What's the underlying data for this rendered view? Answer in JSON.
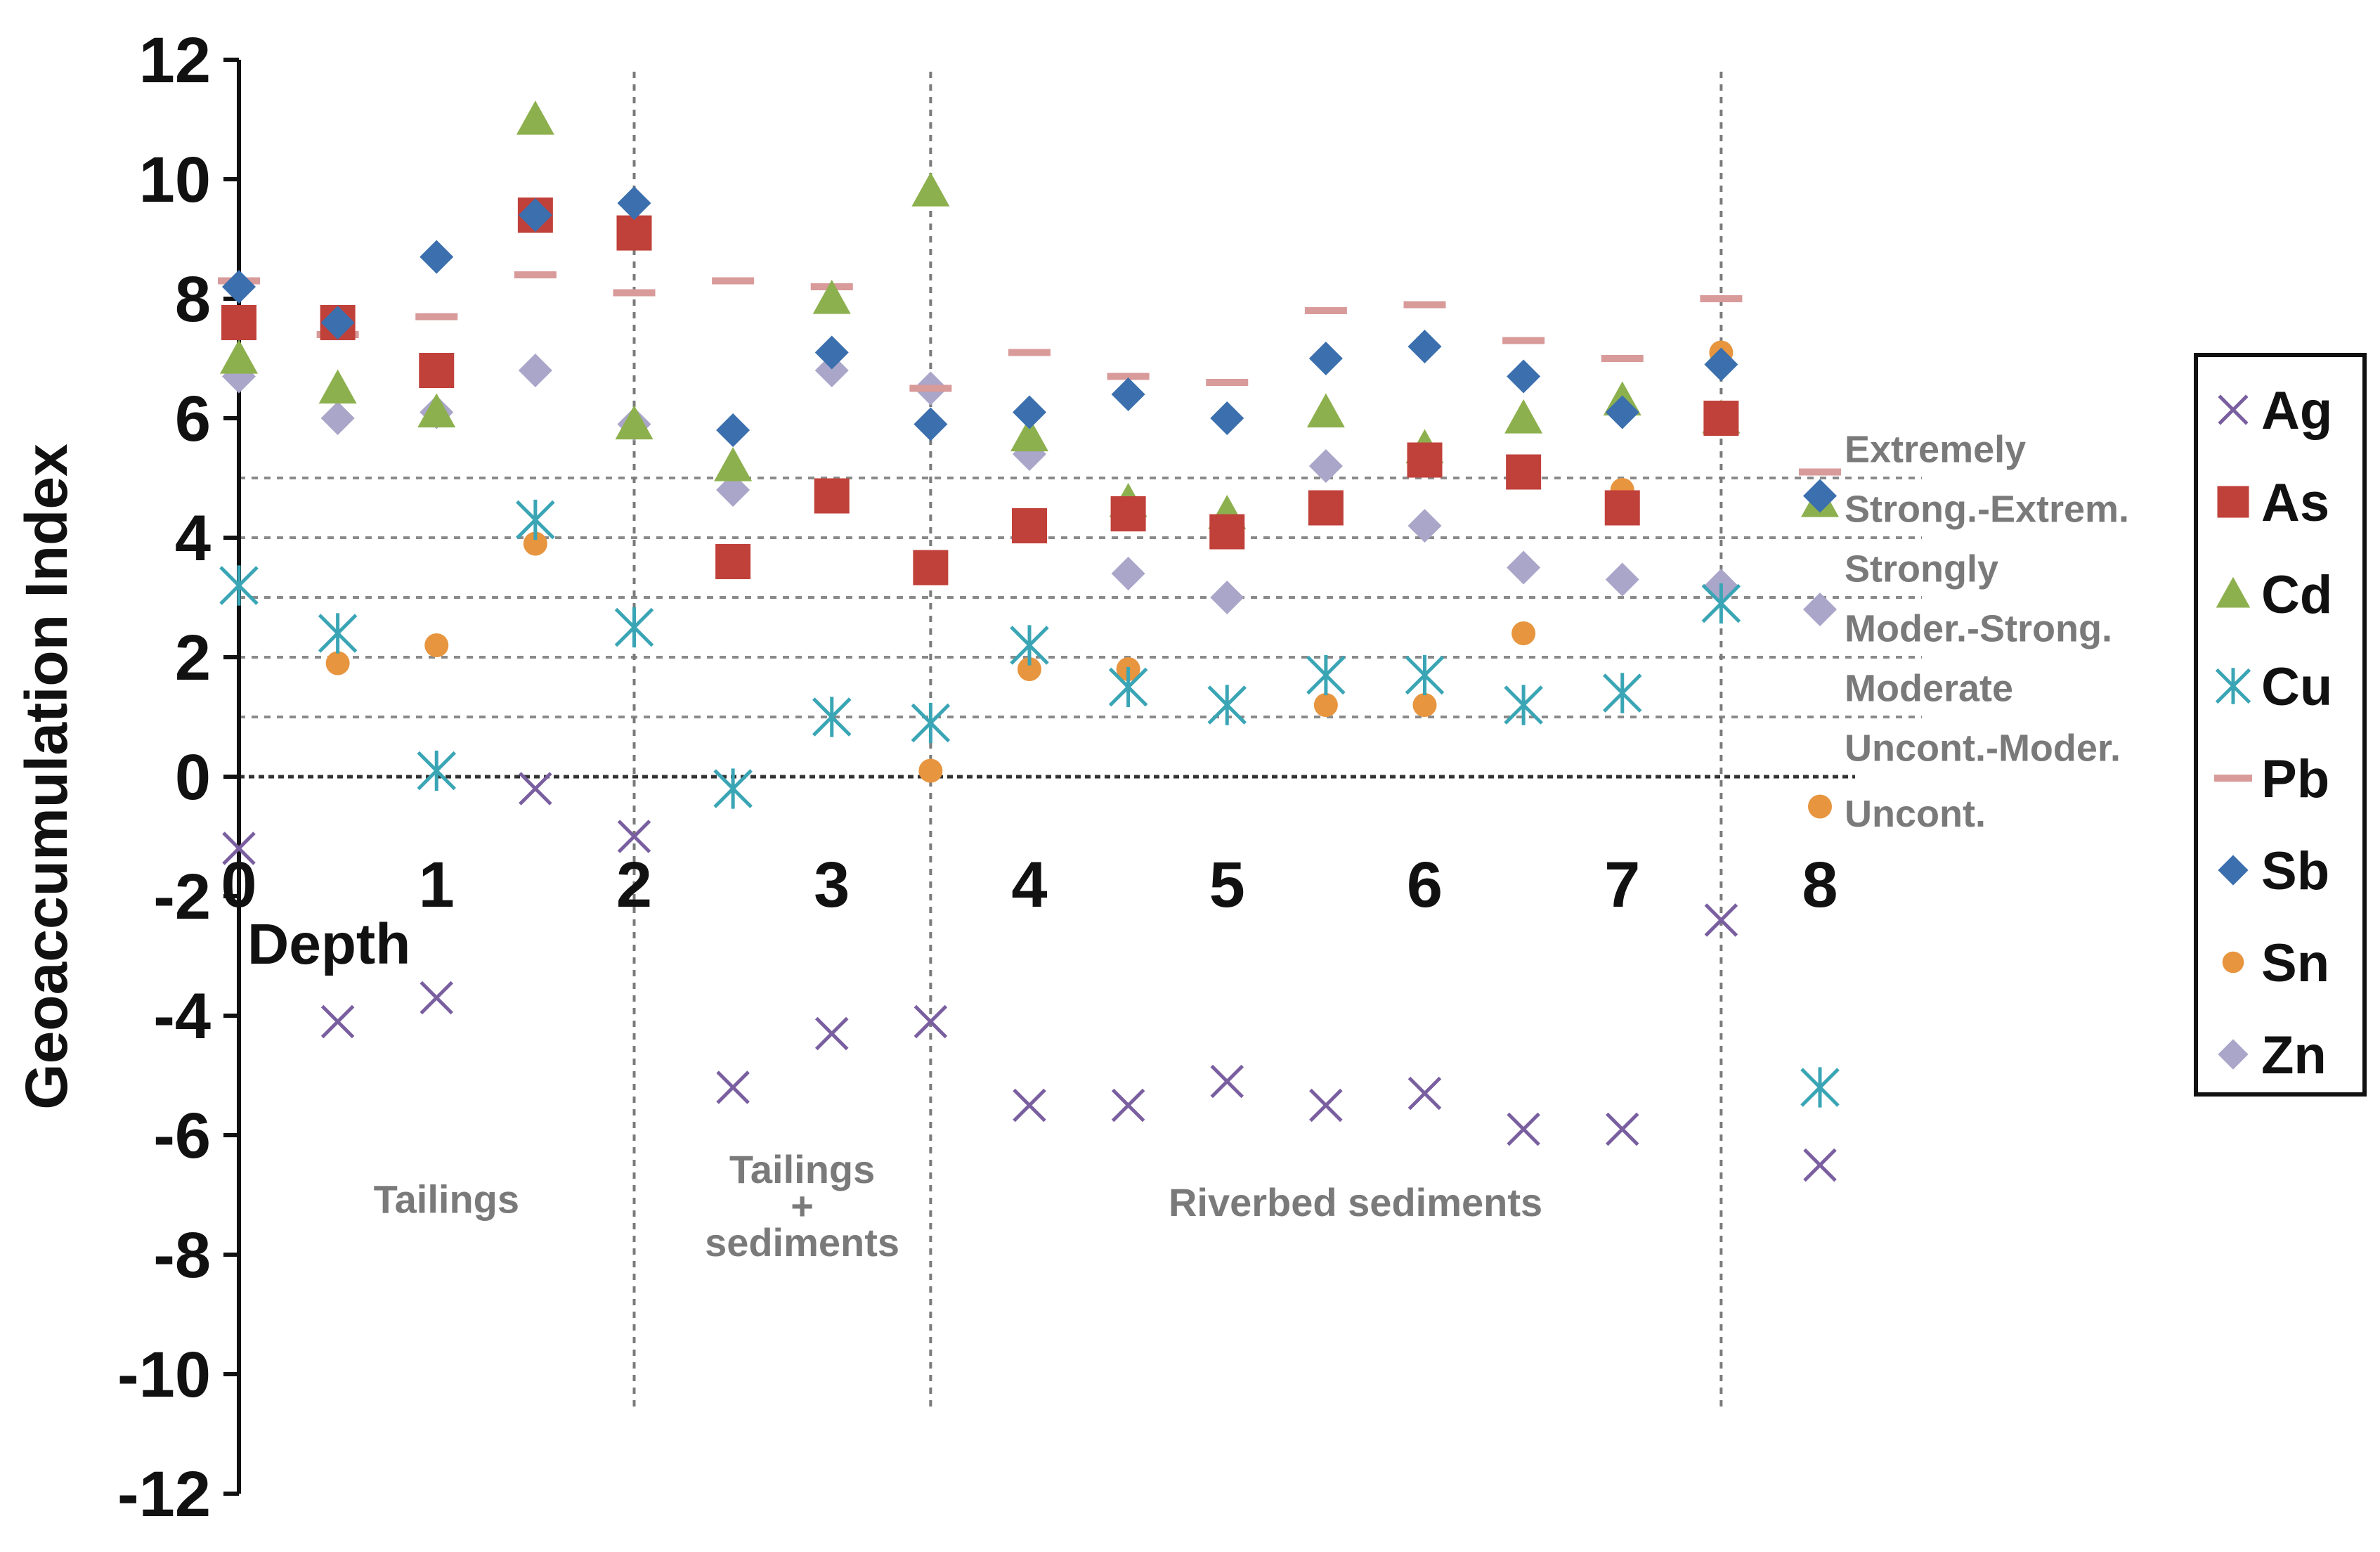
{
  "chart_data": {
    "type": "scatter",
    "title": "",
    "xlabel": "Depth",
    "ylabel": "Geoaccumulation Index",
    "xlim": [
      0,
      8
    ],
    "ylim": [
      -12,
      12
    ],
    "x_ticks": [
      "0",
      "1",
      "2",
      "3",
      "4",
      "5",
      "6",
      "7",
      "8"
    ],
    "y_ticks": [
      "12",
      "10",
      "8",
      "6",
      "4",
      "2",
      "0",
      "-2",
      "-4",
      "-6",
      "-8",
      "-10",
      "-12"
    ],
    "x": [
      0,
      0.5,
      1,
      1.5,
      2,
      2.5,
      3,
      3.5,
      4,
      4.5,
      5,
      5.5,
      6,
      6.5,
      7,
      7.5,
      8
    ],
    "series": [
      {
        "name": "Ag",
        "marker": "x",
        "color": "#7a5fa0",
        "values": [
          -1.2,
          -4.1,
          -3.7,
          -0.2,
          -1.0,
          -5.2,
          -4.3,
          -4.1,
          -5.5,
          -5.5,
          -5.1,
          -5.5,
          -5.3,
          -5.9,
          -5.9,
          -2.4,
          -6.5
        ]
      },
      {
        "name": "As",
        "marker": "square",
        "color": "#c0403a",
        "values": [
          7.6,
          7.6,
          6.8,
          9.4,
          9.1,
          3.6,
          4.7,
          3.5,
          4.2,
          4.4,
          4.1,
          4.5,
          5.3,
          5.1,
          4.5,
          6.0,
          null
        ]
      },
      {
        "name": "Cd",
        "marker": "triangle",
        "color": "#8db04e",
        "values": [
          7.0,
          6.5,
          6.1,
          11.0,
          5.9,
          5.2,
          8.0,
          9.8,
          5.7,
          4.6,
          4.4,
          6.1,
          5.5,
          6.0,
          6.3,
          6.0,
          4.6
        ]
      },
      {
        "name": "Cu",
        "marker": "star",
        "color": "#3aa5b5",
        "values": [
          3.2,
          2.4,
          0.1,
          4.3,
          2.5,
          -0.2,
          1.0,
          0.9,
          2.2,
          1.5,
          1.2,
          1.7,
          1.7,
          1.2,
          1.4,
          2.9,
          -5.2
        ]
      },
      {
        "name": "Pb",
        "marker": "dash",
        "color": "#d99a9a",
        "values": [
          8.3,
          7.4,
          7.7,
          8.4,
          8.1,
          8.3,
          8.2,
          6.5,
          7.1,
          6.7,
          6.6,
          7.8,
          7.9,
          7.3,
          7.0,
          8.0,
          5.1
        ]
      },
      {
        "name": "Sb",
        "marker": "diamond",
        "color": "#3b6fae",
        "values": [
          8.2,
          7.6,
          8.7,
          9.4,
          9.6,
          5.8,
          7.1,
          5.9,
          6.1,
          6.4,
          6.0,
          7.0,
          7.2,
          6.7,
          6.1,
          6.9,
          4.7
        ]
      },
      {
        "name": "Sn",
        "marker": "circle",
        "color": "#e7953f",
        "values": [
          null,
          1.9,
          2.2,
          3.9,
          null,
          null,
          null,
          0.1,
          1.8,
          1.8,
          null,
          1.2,
          1.2,
          2.4,
          4.8,
          7.1,
          -0.5
        ]
      },
      {
        "name": "Zn",
        "marker": "diamond",
        "color": "#aaa6c9",
        "values": [
          6.7,
          6.0,
          6.1,
          6.8,
          5.9,
          4.8,
          6.8,
          6.5,
          5.4,
          3.4,
          3.0,
          5.2,
          4.2,
          3.5,
          3.3,
          3.2,
          2.8
        ]
      }
    ],
    "thresholds": [
      1,
      2,
      3,
      4,
      5
    ],
    "band_labels": [
      {
        "label": "Extremely",
        "y": 5.5
      },
      {
        "label": "Strong.-Extrem.",
        "y": 4.5
      },
      {
        "label": "Strongly",
        "y": 3.5
      },
      {
        "label": "Moder.-Strong.",
        "y": 2.5
      },
      {
        "label": "Moderate",
        "y": 1.5
      },
      {
        "label": "Uncont.-Moder.",
        "y": 0.5
      },
      {
        "label": "Uncont.",
        "y": -0.6
      }
    ],
    "dividers": [
      2,
      3.5,
      7.5
    ],
    "zones": [
      {
        "lines": [
          "Tailings"
        ],
        "x": 1.05,
        "y": -7.3
      },
      {
        "lines": [
          "Tailings",
          "+",
          "sediments"
        ],
        "x": 2.85,
        "y": -6.8
      },
      {
        "lines": [
          "Riverbed sediments"
        ],
        "x": 5.65,
        "y": -7.35
      }
    ],
    "legend": [
      "Ag",
      "As",
      "Cd",
      "Cu",
      "Pb",
      "Sb",
      "Sn",
      "Zn"
    ],
    "legend_position": "right"
  }
}
